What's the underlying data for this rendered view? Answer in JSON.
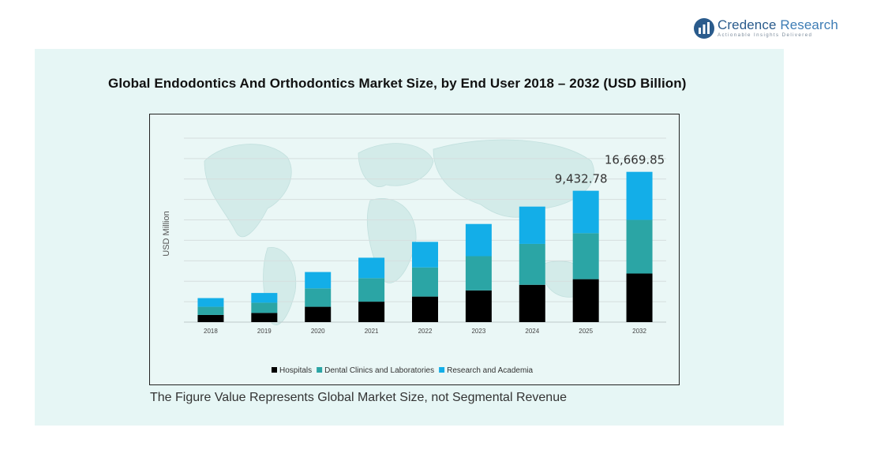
{
  "brand": {
    "name_part1": "Credence",
    "name_part2": " Research",
    "tagline": "Actionable Insights Delivered",
    "logo_icon": "credence-logo-icon",
    "color": "#2a5b8c"
  },
  "footnote": "The Figure Value Represents Global Market Size, not Segmental Revenue",
  "chart_data": {
    "type": "bar",
    "stacked": true,
    "title": "Global Endodontics And Orthodontics Market Size, by End User 2018 – 2032 (USD Billion)",
    "xlabel": "",
    "ylabel": "USD Million",
    "categories": [
      "2018",
      "2019",
      "2020",
      "2021",
      "2022",
      "2023",
      "2024",
      "2025",
      "2032"
    ],
    "series": [
      {
        "name": "Hospitals",
        "color": "#000000",
        "values": [
          1.4,
          1.8,
          3.0,
          4.0,
          5.0,
          6.2,
          7.3,
          8.4,
          9.5
        ]
      },
      {
        "name": "Dental Clinics and Laboratories",
        "color": "#2ba5a5",
        "values": [
          1.6,
          2.0,
          3.6,
          4.6,
          5.7,
          6.7,
          8.0,
          9.0,
          10.5
        ]
      },
      {
        "name": "Research and Academia",
        "color": "#13aee8",
        "values": [
          1.7,
          1.9,
          3.2,
          4.0,
          5.0,
          6.3,
          7.3,
          8.3,
          9.4
        ]
      }
    ],
    "annotations": [
      {
        "category": "2025",
        "text": "9,432.78"
      },
      {
        "category": "2032",
        "text": "16,669.85"
      }
    ],
    "ylim": [
      0,
      38
    ],
    "grid": true,
    "legend_position": "bottom"
  }
}
